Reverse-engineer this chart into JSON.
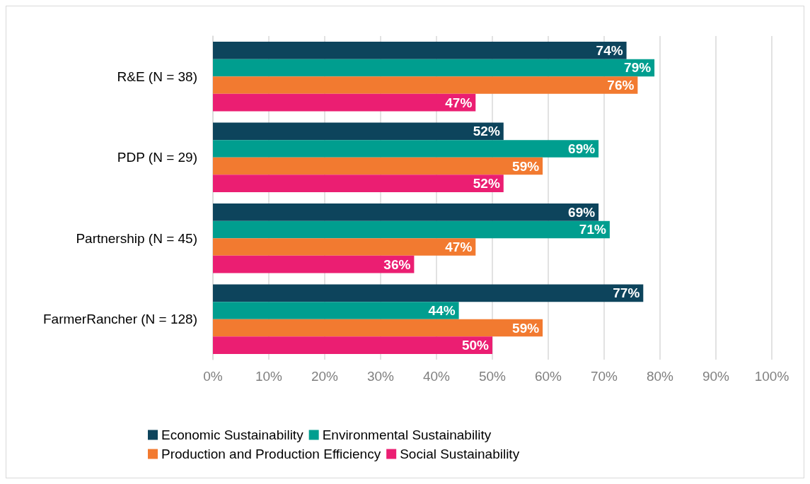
{
  "chart_data": {
    "type": "bar",
    "orientation": "horizontal",
    "categories": [
      "R&E (N = 38)",
      "PDP (N = 29)",
      "Partnership (N = 45)",
      "FarmerRancher (N = 128)"
    ],
    "series": [
      {
        "name": "Economic Sustainability",
        "color": "#0d445c",
        "values": [
          74,
          52,
          69,
          77
        ],
        "value_labels": [
          "74%",
          "52%",
          "69%",
          "77%"
        ]
      },
      {
        "name": "Environmental Sustainability",
        "color": "#009e8f",
        "values": [
          79,
          69,
          71,
          44
        ],
        "value_labels": [
          "79%",
          "69%",
          "71%",
          "44%"
        ]
      },
      {
        "name": "Production and Production Efficiency",
        "color": "#f27a30",
        "values": [
          76,
          59,
          47,
          59
        ],
        "value_labels": [
          "76%",
          "59%",
          "47%",
          "59%"
        ]
      },
      {
        "name": "Social Sustainability",
        "color": "#eb1e72",
        "values": [
          47,
          52,
          36,
          50
        ],
        "value_labels": [
          "47%",
          "52%",
          "36%",
          "50%"
        ]
      }
    ],
    "xlim": [
      0,
      100
    ],
    "xticks": [
      {
        "value": 0,
        "label": "0%"
      },
      {
        "value": 10,
        "label": "10%"
      },
      {
        "value": 20,
        "label": "20%"
      },
      {
        "value": 30,
        "label": "30%"
      },
      {
        "value": 40,
        "label": "40%"
      },
      {
        "value": 50,
        "label": "50%"
      },
      {
        "value": 60,
        "label": "60%"
      },
      {
        "value": 70,
        "label": "70%"
      },
      {
        "value": 80,
        "label": "80%"
      },
      {
        "value": 90,
        "label": "90%"
      },
      {
        "value": 100,
        "label": "100%"
      }
    ],
    "grid": "x",
    "legend": "bottom"
  }
}
